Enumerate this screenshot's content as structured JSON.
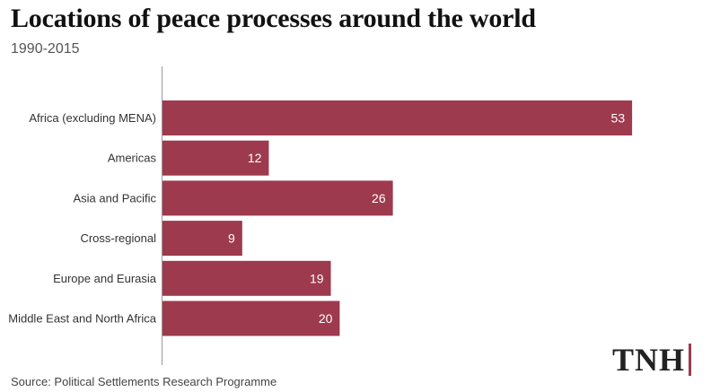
{
  "header": {
    "title": "Locations of peace processes around the world",
    "subtitle": "1990-2015"
  },
  "footer": {
    "source": "Source: Political Settlements Research Programme",
    "logo_text": "TNH"
  },
  "colors": {
    "bar": "#9e3a4e",
    "axis": "#999999",
    "logo_accent": "#9e3a4e"
  },
  "chart_data": {
    "type": "bar",
    "orientation": "horizontal",
    "title": "Locations of peace processes around the world",
    "subtitle": "1990-2015",
    "categories": [
      "Africa (excluding MENA)",
      "Americas",
      "Asia and Pacific",
      "Cross-regional",
      "Europe and Eurasia",
      "Middle East and North Africa"
    ],
    "values": [
      53,
      12,
      26,
      9,
      19,
      20
    ],
    "xlim": [
      0,
      55
    ],
    "grid": false,
    "legend": "none"
  }
}
